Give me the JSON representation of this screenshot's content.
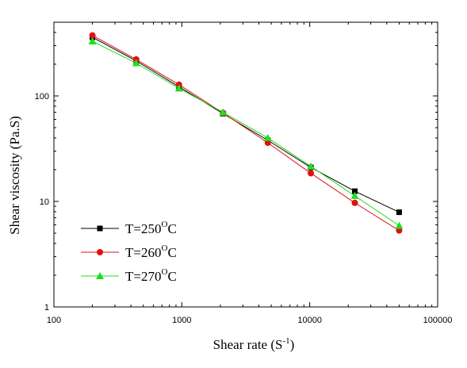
{
  "chart_data": {
    "type": "line",
    "title": "",
    "xlabel": "Shear rate (S",
    "xlabel_sup": "-1",
    "xlabel_end": ")",
    "ylabel": "Shear viscosity (Pa.S)",
    "xscale": "log",
    "yscale": "log",
    "xlim": [
      100,
      100000
    ],
    "ylim": [
      1,
      500
    ],
    "xticks": [
      100,
      1000,
      10000,
      100000
    ],
    "xtick_labels": [
      "100",
      "1000",
      "10000",
      "100000"
    ],
    "yticks": [
      1,
      10,
      100
    ],
    "ytick_labels": [
      "1",
      "10",
      "100"
    ],
    "grid": false,
    "legend_position": "bottom-left",
    "x": [
      200,
      440,
      950,
      2100,
      4700,
      10200,
      22500,
      50000
    ],
    "series": [
      {
        "name": "T=250",
        "name_sup": "O",
        "name_end": "C",
        "color": "#000000",
        "marker": "square",
        "values": [
          360,
          215,
          122,
          68,
          38,
          21,
          12.5,
          7.9
        ]
      },
      {
        "name": "T=260",
        "name_sup": "O",
        "name_end": "C",
        "color": "#e01010",
        "marker": "circle",
        "values": [
          375,
          222,
          128,
          69,
          36,
          18.5,
          9.7,
          5.3
        ]
      },
      {
        "name": "T=270",
        "name_sup": "O",
        "name_end": "C",
        "color": "#22dd22",
        "marker": "triangle",
        "values": [
          330,
          205,
          118,
          70,
          40,
          21.5,
          11.3,
          5.9
        ]
      }
    ]
  }
}
